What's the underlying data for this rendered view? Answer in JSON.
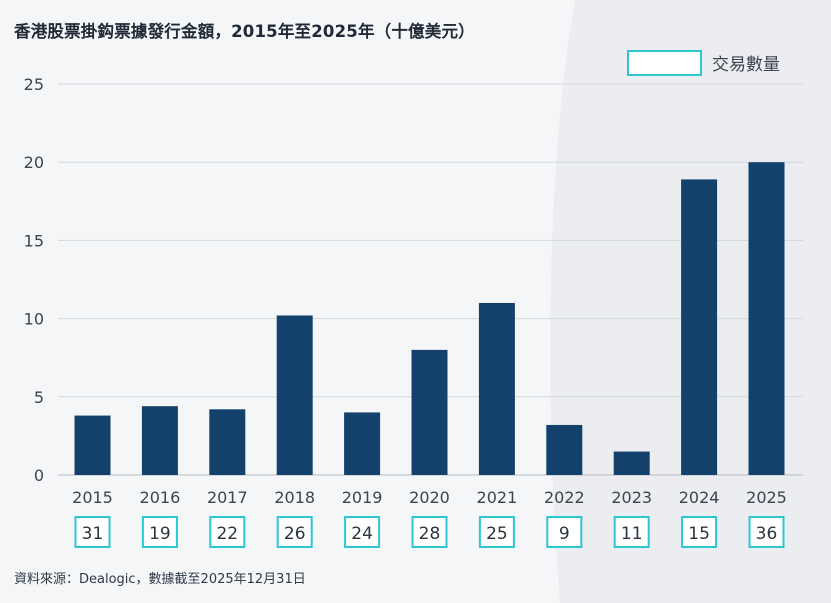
{
  "colors": {
    "bar": "#13416b",
    "box_border": "#2ec6d3",
    "grid": "#d5d8dc",
    "axis": "#b8bcc2",
    "text": "#3b4550"
  },
  "chart_data": {
    "type": "bar",
    "title": "香港股票掛鈎票據發行金額，2015年至2025年（十億美元）",
    "categories": [
      "2015",
      "2016",
      "2017",
      "2018",
      "2019",
      "2020",
      "2021",
      "2022",
      "2023",
      "2024",
      "2025"
    ],
    "values": [
      3.8,
      4.4,
      4.2,
      10.2,
      4.0,
      8.0,
      11.0,
      3.2,
      1.5,
      18.9,
      20.0
    ],
    "deal_counts": [
      31,
      19,
      22,
      26,
      24,
      28,
      25,
      9,
      11,
      15,
      36
    ],
    "legend": {
      "label": "交易數量",
      "placement": "top-right"
    },
    "xlabel": "",
    "ylabel": "",
    "ylim": [
      0,
      25
    ],
    "yticks": [
      0,
      5,
      10,
      15,
      20,
      25
    ],
    "grid": true
  },
  "footer": {
    "source": "資料來源：Dealogic，數據截至2025年12月31日"
  }
}
